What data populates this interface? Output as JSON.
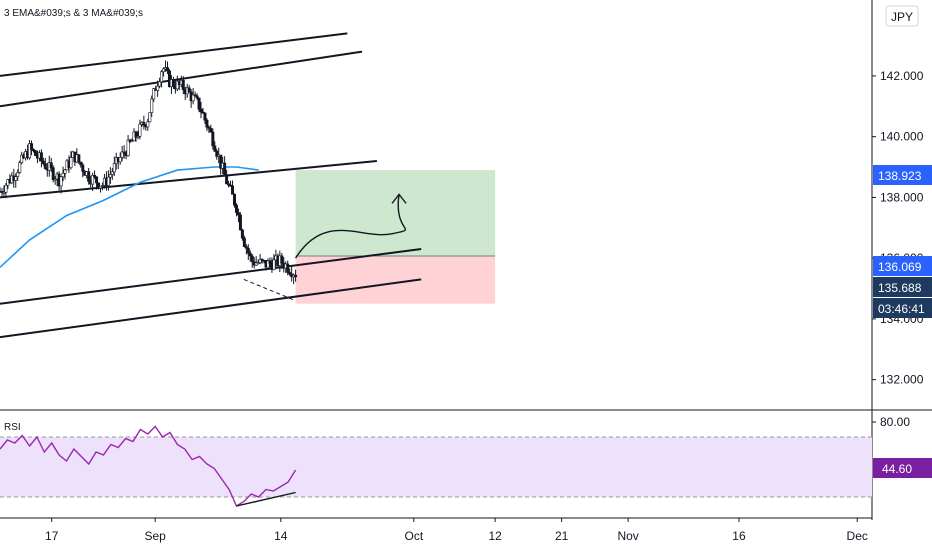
{
  "indicator_label": "3 EMA&#039;s & 3 MA&#039;s",
  "rsi_label": "RSI",
  "currency_button": "JPY",
  "price_badges": {
    "ma": "138.923",
    "last": "136.069",
    "current": "135.688",
    "countdown": "03:46:41"
  },
  "rsi_badge": "44.60",
  "colors": {
    "ma_line": "#2196f3",
    "rsi_line": "#9c27b0",
    "rsi_band": "#ede1fb",
    "target_zone": "#c8e6c9",
    "stop_zone": "#ffcdd2",
    "badge_blue": "#2962ff",
    "badge_dark": "#1e3a5f",
    "rsi_badge": "#7b1fa2"
  },
  "chart_data": [
    {
      "type": "line",
      "subtype": "candlestick",
      "ylim": [
        131.0,
        144.5
      ],
      "y_ticks": [
        "142.000",
        "140.000",
        "138.000",
        "136.000",
        "134.000",
        "132.000"
      ],
      "y_tick_values": [
        142,
        140,
        138,
        136,
        134,
        132
      ],
      "x_ticks": [
        "17",
        "Sep",
        "14",
        "Oct",
        "12",
        "21",
        "Nov",
        "16",
        "Dec"
      ],
      "x_tick_positions": [
        8,
        22,
        39,
        57,
        68,
        77,
        86,
        101,
        117
      ],
      "xlim": [
        1,
        119
      ],
      "grid": false,
      "price_path": [
        [
          1,
          138.2
        ],
        [
          3,
          138.8
        ],
        [
          5,
          139.6
        ],
        [
          7,
          139.1
        ],
        [
          9,
          138.6
        ],
        [
          11,
          139.4
        ],
        [
          13,
          138.7
        ],
        [
          15,
          138.4
        ],
        [
          17,
          139.2
        ],
        [
          19,
          139.9
        ],
        [
          21,
          140.6
        ],
        [
          22,
          141.6
        ],
        [
          23,
          142.3
        ],
        [
          24,
          141.8
        ],
        [
          26,
          141.6
        ],
        [
          28,
          141.0
        ],
        [
          30,
          139.8
        ],
        [
          31,
          139.0
        ],
        [
          32,
          138.3
        ],
        [
          33,
          137.7
        ],
        [
          34,
          136.6
        ],
        [
          35,
          135.9
        ],
        [
          37,
          135.8
        ],
        [
          39,
          135.9
        ],
        [
          40,
          135.7
        ],
        [
          41,
          135.5
        ]
      ],
      "ma_path": [
        [
          1,
          135.7
        ],
        [
          5,
          136.6
        ],
        [
          10,
          137.4
        ],
        [
          15,
          137.9
        ],
        [
          20,
          138.5
        ],
        [
          25,
          138.9
        ],
        [
          30,
          139.0
        ],
        [
          33,
          139.0
        ],
        [
          36,
          138.9
        ]
      ],
      "channel_lines": [
        {
          "from": [
            1,
            142.0
          ],
          "to": [
            48,
            143.4
          ]
        },
        {
          "from": [
            1,
            141.0
          ],
          "to": [
            50,
            142.8
          ]
        },
        {
          "from": [
            1,
            138.0
          ],
          "to": [
            52,
            139.2
          ]
        },
        {
          "from": [
            1,
            134.5
          ],
          "to": [
            58,
            136.3
          ]
        },
        {
          "from": [
            1,
            133.4
          ],
          "to": [
            58,
            135.3
          ]
        },
        {
          "from": [
            34,
            135.3
          ],
          "to": [
            41,
            134.6
          ]
        }
      ],
      "position": {
        "x_start": 41,
        "x_end": 68,
        "entry": 136.069,
        "target": 138.9,
        "stop": 134.5
      },
      "projection_path": [
        [
          41,
          136.0
        ],
        [
          45,
          136.9
        ],
        [
          50,
          136.6
        ],
        [
          54,
          136.8
        ],
        [
          55,
          138.1
        ]
      ]
    },
    {
      "type": "line",
      "title": "RSI",
      "ylim": [
        16,
        88
      ],
      "y_ticks": [
        "80.00"
      ],
      "y_tick_values": [
        80
      ],
      "band": [
        30,
        70
      ],
      "values": [
        62,
        68,
        66,
        71,
        64,
        70,
        60,
        66,
        58,
        54,
        62,
        57,
        52,
        60,
        58,
        65,
        63,
        69,
        67,
        75,
        72,
        77,
        70,
        73,
        65,
        62,
        55,
        57,
        52,
        49,
        42,
        35,
        24,
        27,
        32,
        30,
        35,
        34,
        37,
        40,
        48
      ]
    }
  ]
}
